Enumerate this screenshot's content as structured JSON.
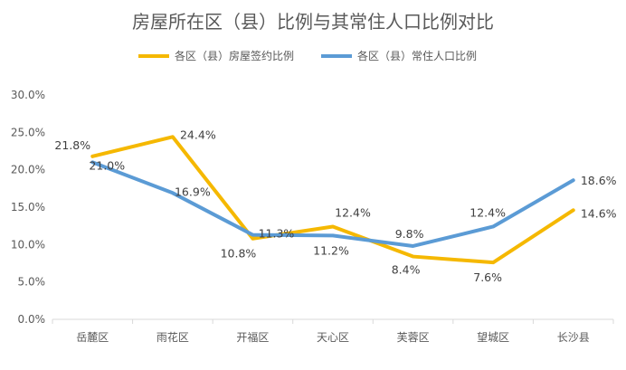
{
  "chart_data": {
    "type": "line",
    "title": "房屋所在区（县）比例与其常住人口比例对比",
    "categories": [
      "岳麓区",
      "雨花区",
      "开福区",
      "天心区",
      "芙蓉区",
      "望城区",
      "长沙县"
    ],
    "ylim": [
      0,
      30
    ],
    "yticks": [
      "0.0%",
      "5.0%",
      "10.0%",
      "15.0%",
      "20.0%",
      "25.0%",
      "30.0%"
    ],
    "ytick_values": [
      0,
      5,
      10,
      15,
      20,
      25,
      30
    ],
    "grid": false,
    "legend_position": "top",
    "series": [
      {
        "name": "各区（县）房屋签约比例",
        "color": "#F5B800",
        "values": [
          21.8,
          24.4,
          10.8,
          12.4,
          8.4,
          7.6,
          14.6
        ],
        "labels": [
          "21.8%",
          "24.4%",
          "10.8%",
          "12.4%",
          "8.4%",
          "7.6%",
          "14.6%"
        ]
      },
      {
        "name": "各区（县）常住人口比例",
        "color": "#5B9BD5",
        "values": [
          21.0,
          16.9,
          11.3,
          11.2,
          9.8,
          12.4,
          18.6
        ],
        "labels": [
          "21.0%",
          "16.9%",
          "11.3%",
          "11.2%",
          "9.8%",
          "12.4%",
          "18.6%"
        ]
      }
    ]
  }
}
